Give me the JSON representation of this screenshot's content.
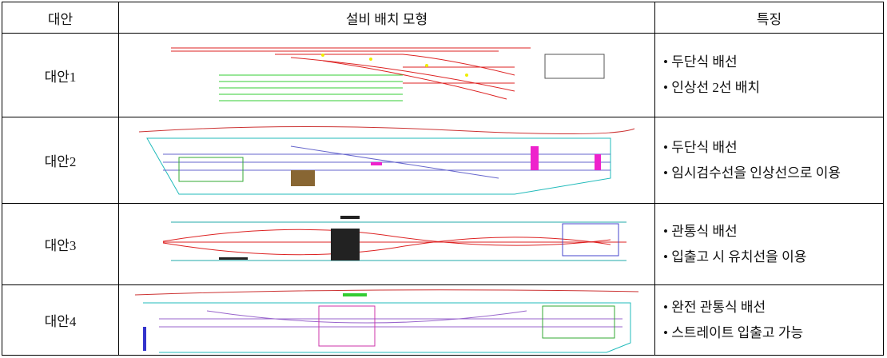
{
  "table": {
    "header": [
      "대안",
      "설비 배치 모형",
      "특징"
    ],
    "rows": [
      {
        "name": "대안1",
        "features": [
          "• 두단식 배선",
          "• 인상선 2선 배치"
        ]
      },
      {
        "name": "대안2",
        "features": [
          "• 두단식 배선",
          "• 임시검수선을 인상선으로 이용"
        ]
      },
      {
        "name": "대안3",
        "features": [
          "• 관통식 배선",
          "• 입출고 시 유치선을 이용"
        ]
      },
      {
        "name": "대안4",
        "features": [
          "• 완전 관통식 배선",
          "• 스트레이트 입출고 가능"
        ]
      }
    ]
  }
}
